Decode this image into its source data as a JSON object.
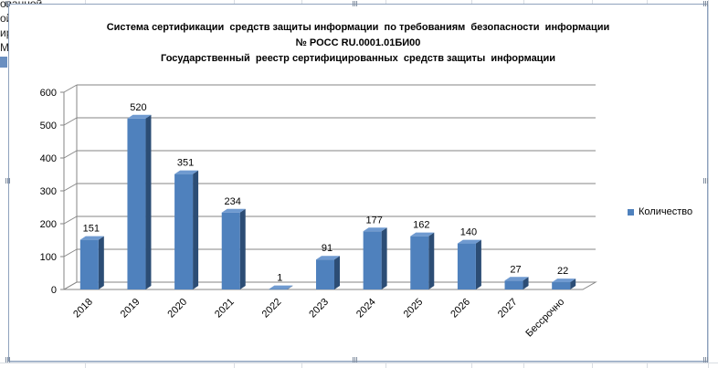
{
  "sheet": {
    "cells": [
      "ованной",
      "ой",
      "ир",
      "M"
    ]
  },
  "chart_data": {
    "type": "bar",
    "title_lines": [
      "Система сертификации  средств защиты информации  по требованиям  безопасности  информации",
      "№ РОСС RU.0001.01БИ00",
      "Государственный  реестр сертифицированных  средств защиты  информации"
    ],
    "categories": [
      "2018",
      "2019",
      "2020",
      "2021",
      "2022",
      "2023",
      "2024",
      "2025",
      "2026",
      "2027",
      "Бессрочно"
    ],
    "series": [
      {
        "name": "Количество",
        "values": [
          151,
          520,
          351,
          234,
          1,
          91,
          177,
          162,
          140,
          27,
          22
        ],
        "color": "#4f81bd"
      }
    ],
    "data_labels": [
      "151",
      "520",
      "351",
      "234",
      "1",
      "91",
      "177",
      "162",
      "140",
      "27",
      "22"
    ],
    "y_ticks": [
      "0",
      "100",
      "200",
      "300",
      "400",
      "500",
      "600"
    ],
    "ylim": [
      0,
      600
    ],
    "grid": true,
    "legend_position": "right",
    "style": "3d-column"
  }
}
